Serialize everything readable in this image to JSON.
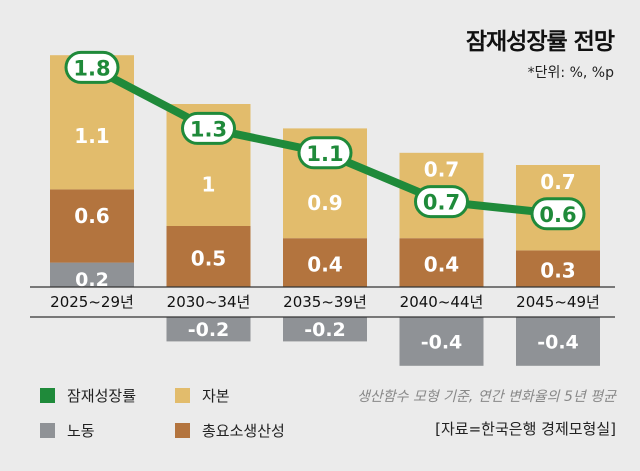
{
  "title": "잠재성장률 전망",
  "unit": "*단위: %, %p",
  "note": "생산함수 모형 기준, 연간 변화율의 5년 평균",
  "source": "[자료=한국은행 경제모형실]",
  "colors": {
    "potential": "#1f8a3a",
    "capital": "#e2bc6c",
    "labor": "#8f9296",
    "tfp": "#b3743e"
  },
  "chart_data": {
    "type": "bar",
    "stacked": true,
    "title": "잠재성장률 전망",
    "categories": [
      "2025~29년",
      "2030~34년",
      "2035~39년",
      "2040~44년",
      "2045~49년"
    ],
    "series": [
      {
        "name": "자본",
        "type": "bar",
        "values": [
          1.1,
          1,
          0.9,
          0.7,
          0.7
        ]
      },
      {
        "name": "총요소생산성",
        "type": "bar",
        "values": [
          0.6,
          0.5,
          0.4,
          0.4,
          0.3
        ]
      },
      {
        "name": "노동",
        "type": "bar",
        "values": [
          0.2,
          -0.2,
          -0.2,
          -0.4,
          -0.4
        ]
      },
      {
        "name": "잠재성장률",
        "type": "line",
        "values": [
          1.8,
          1.3,
          1.1,
          0.7,
          0.6
        ]
      }
    ],
    "legend": [
      "잠재성장률",
      "자본",
      "노동",
      "총요소생산성"
    ],
    "legend_placement": "bottom-left",
    "grid": false
  }
}
